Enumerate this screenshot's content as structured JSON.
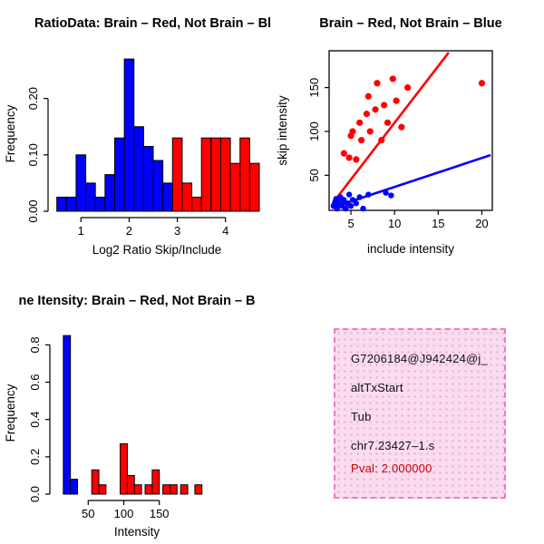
{
  "window": {
    "title": "R Graphics Device",
    "background": "#ffffff"
  },
  "colors": {
    "red": "#ff0000",
    "blue": "#0000ff",
    "axis": "#000000"
  },
  "info_box": {
    "lines": [
      "G7206184@J942424@j_",
      "altTxStart",
      "Tub",
      "chr7.23427–1.s"
    ],
    "pval": "Pval: 2.000000",
    "pval_color": "#cc0000",
    "bg_color": "#fadcef",
    "border_color": "#e87cc4"
  },
  "chart_data": [
    {
      "type": "bar",
      "subtype": "histogram",
      "title": "RatioData: Brain – Red, Not Brain – Blu",
      "xlabel": "Log2 Ratio Skip/Include",
      "ylabel": "Frequency",
      "xlim": [
        0.45,
        4.7
      ],
      "ylim": [
        0,
        0.275
      ],
      "xticks": [
        1,
        2,
        3,
        4
      ],
      "xtick_labels": [
        "1",
        "2",
        "3",
        "4"
      ],
      "yticks": [
        0.0,
        0.1,
        0.2
      ],
      "ytick_labels": [
        "0.00",
        "0.10",
        "0.20"
      ],
      "bin_width": 0.2,
      "legend_note": "blue = Not Brain, red = Brain",
      "bars": [
        {
          "x": 0.5,
          "h": 0.025,
          "color": "blue"
        },
        {
          "x": 0.7,
          "h": 0.025,
          "color": "blue"
        },
        {
          "x": 0.9,
          "h": 0.1,
          "color": "blue"
        },
        {
          "x": 1.1,
          "h": 0.05,
          "color": "blue"
        },
        {
          "x": 1.3,
          "h": 0.025,
          "color": "blue"
        },
        {
          "x": 1.5,
          "h": 0.065,
          "color": "blue"
        },
        {
          "x": 1.7,
          "h": 0.13,
          "color": "blue"
        },
        {
          "x": 1.9,
          "h": 0.27,
          "color": "blue"
        },
        {
          "x": 2.1,
          "h": 0.15,
          "color": "blue"
        },
        {
          "x": 2.3,
          "h": 0.115,
          "color": "blue"
        },
        {
          "x": 2.5,
          "h": 0.09,
          "color": "blue"
        },
        {
          "x": 2.7,
          "h": 0.05,
          "color": "blue"
        },
        {
          "x": 2.9,
          "h": 0.13,
          "color": "red"
        },
        {
          "x": 3.1,
          "h": 0.05,
          "color": "red"
        },
        {
          "x": 3.3,
          "h": 0.025,
          "color": "red"
        },
        {
          "x": 3.5,
          "h": 0.13,
          "color": "red"
        },
        {
          "x": 3.7,
          "h": 0.13,
          "color": "red"
        },
        {
          "x": 3.9,
          "h": 0.13,
          "color": "red"
        },
        {
          "x": 4.1,
          "h": 0.085,
          "color": "red"
        },
        {
          "x": 4.3,
          "h": 0.13,
          "color": "red"
        },
        {
          "x": 4.5,
          "h": 0.085,
          "color": "red"
        }
      ]
    },
    {
      "type": "scatter",
      "title": "Brain – Red, Not Brain – Blue",
      "xlabel": "include intensity",
      "ylabel": "skip intensity",
      "xlim": [
        2.5,
        21.2
      ],
      "ylim": [
        10,
        192
      ],
      "xticks": [
        5,
        10,
        15,
        20
      ],
      "xtick_labels": [
        "5",
        "10",
        "15",
        "20"
      ],
      "yticks": [
        50,
        100,
        150
      ],
      "ytick_labels": [
        "50",
        "100",
        "150"
      ],
      "series": [
        {
          "name": "Brain",
          "color": "red",
          "r": 3.6,
          "points": [
            [
              4.2,
              75
            ],
            [
              4.8,
              70
            ],
            [
              5.0,
              95
            ],
            [
              5.2,
              100
            ],
            [
              5.6,
              68
            ],
            [
              6.0,
              110
            ],
            [
              6.2,
              90
            ],
            [
              6.8,
              120
            ],
            [
              7.0,
              140
            ],
            [
              7.2,
              100
            ],
            [
              7.8,
              125
            ],
            [
              8.0,
              155
            ],
            [
              8.5,
              90
            ],
            [
              8.8,
              130
            ],
            [
              9.2,
              110
            ],
            [
              9.8,
              160
            ],
            [
              10.2,
              135
            ],
            [
              10.8,
              105
            ],
            [
              11.5,
              150
            ],
            [
              20.0,
              155
            ]
          ]
        },
        {
          "name": "Not Brain",
          "color": "blue",
          "r": 3.2,
          "points": [
            [
              3.0,
              15
            ],
            [
              3.1,
              17
            ],
            [
              3.2,
              20
            ],
            [
              3.3,
              23
            ],
            [
              3.4,
              12
            ],
            [
              3.5,
              15
            ],
            [
              3.6,
              18
            ],
            [
              3.8,
              25
            ],
            [
              3.9,
              20
            ],
            [
              4.0,
              15
            ],
            [
              4.2,
              22
            ],
            [
              4.4,
              12
            ],
            [
              4.6,
              18
            ],
            [
              4.8,
              28
            ],
            [
              5.0,
              15
            ],
            [
              5.2,
              22
            ],
            [
              5.6,
              18
            ],
            [
              6.0,
              25
            ],
            [
              6.4,
              12
            ],
            [
              7.0,
              28
            ],
            [
              9.0,
              30
            ],
            [
              9.6,
              27
            ]
          ]
        }
      ],
      "lines": [
        {
          "color": "red",
          "x1": 3.2,
          "y1": 22,
          "x2": 16.2,
          "y2": 190
        },
        {
          "color": "blue",
          "x1": 2.8,
          "y1": 13,
          "x2": 21.0,
          "y2": 73
        }
      ]
    },
    {
      "type": "bar",
      "subtype": "histogram",
      "title": "ne Itensity: Brain – Red, Not Brain – B",
      "xlabel": "Intensity",
      "ylabel": "Frequency",
      "xlim": [
        5,
        232
      ],
      "ylim": [
        0,
        0.87
      ],
      "xticks": [
        50,
        100,
        150
      ],
      "xtick_labels": [
        "50",
        "100",
        "150"
      ],
      "yticks": [
        0.0,
        0.2,
        0.4,
        0.6,
        0.8
      ],
      "ytick_labels": [
        "0.0",
        "0.2",
        "0.4",
        "0.6",
        "0.8"
      ],
      "bin_width": 10,
      "legend_note": "blue = Not Brain, red = Brain",
      "bars": [
        {
          "x": 15,
          "h": 0.85,
          "color": "blue"
        },
        {
          "x": 25,
          "h": 0.08,
          "color": "blue"
        },
        {
          "x": 55,
          "h": 0.13,
          "color": "red"
        },
        {
          "x": 65,
          "h": 0.05,
          "color": "red"
        },
        {
          "x": 95,
          "h": 0.27,
          "color": "red"
        },
        {
          "x": 105,
          "h": 0.1,
          "color": "red"
        },
        {
          "x": 115,
          "h": 0.05,
          "color": "red"
        },
        {
          "x": 130,
          "h": 0.05,
          "color": "red"
        },
        {
          "x": 140,
          "h": 0.13,
          "color": "red"
        },
        {
          "x": 155,
          "h": 0.05,
          "color": "red"
        },
        {
          "x": 165,
          "h": 0.05,
          "color": "red"
        },
        {
          "x": 180,
          "h": 0.05,
          "color": "red"
        },
        {
          "x": 200,
          "h": 0.05,
          "color": "red"
        }
      ]
    }
  ]
}
